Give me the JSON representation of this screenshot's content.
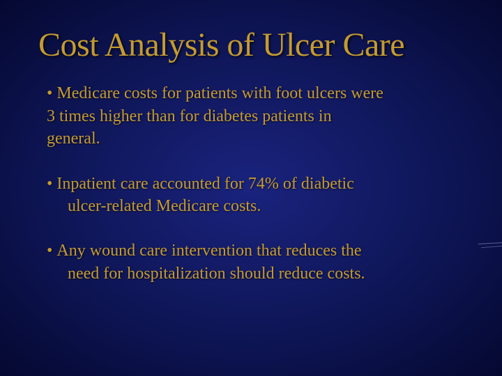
{
  "slide": {
    "title": "Cost Analysis of Ulcer Care",
    "bullets": [
      {
        "lead": "Medicare costs for patients with foot ulcers were",
        "line2": "3 times higher than for diabetes patients in",
        "line3": "general.",
        "indented": false
      },
      {
        "lead": "Inpatient care accounted for 74% of diabetic",
        "line2": "ulcer-related Medicare costs.",
        "line3": "",
        "indented": true
      },
      {
        "lead": "Any wound care intervention that reduces the",
        "line2": "need for hospitalization should reduce costs.",
        "line3": "",
        "indented": true
      }
    ]
  },
  "style": {
    "background_gradient": [
      "#1a237e",
      "#0d1452",
      "#050830"
    ],
    "title_color": "#c49b30",
    "title_fontsize": 48,
    "text_color": "#c49b30",
    "text_fontsize": 24,
    "font_family": "Times New Roman",
    "slide_width": 720,
    "slide_height": 540
  }
}
